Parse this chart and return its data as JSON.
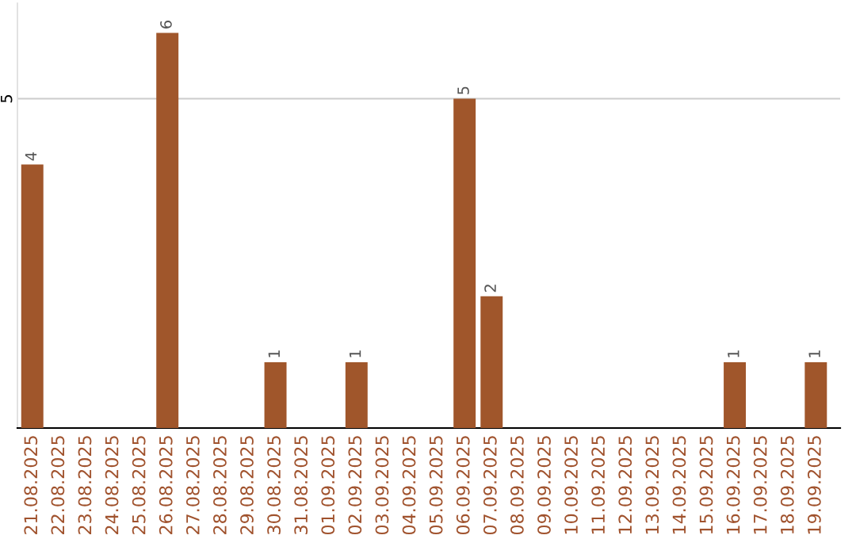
{
  "chart_data": {
    "type": "bar",
    "categories": [
      "21.08.2025",
      "22.08.2025",
      "23.08.2025",
      "24.08.2025",
      "25.08.2025",
      "26.08.2025",
      "27.08.2025",
      "28.08.2025",
      "29.08.2025",
      "30.08.2025",
      "31.08.2025",
      "01.09.2025",
      "02.09.2025",
      "03.09.2025",
      "04.09.2025",
      "05.09.2025",
      "06.09.2025",
      "07.09.2025",
      "08.09.2025",
      "09.09.2025",
      "10.09.2025",
      "11.09.2025",
      "12.09.2025",
      "13.09.2025",
      "14.09.2025",
      "15.09.2025",
      "16.09.2025",
      "17.09.2025",
      "18.09.2025",
      "19.09.2025"
    ],
    "values": [
      4,
      0,
      0,
      0,
      0,
      6,
      0,
      0,
      0,
      1,
      0,
      0,
      1,
      0,
      0,
      0,
      5,
      2,
      0,
      0,
      0,
      0,
      0,
      0,
      0,
      0,
      1,
      0,
      0,
      1
    ],
    "value_labels": [
      "4",
      null,
      null,
      null,
      null,
      "6",
      null,
      null,
      null,
      "1",
      null,
      null,
      "1",
      null,
      null,
      null,
      "5",
      "2",
      null,
      null,
      null,
      null,
      null,
      null,
      null,
      null,
      "1",
      null,
      null,
      "1"
    ],
    "color": "#a0562b",
    "ylim": [
      0,
      6.45
    ],
    "yticks": [
      5
    ],
    "grid": "y",
    "legend": false
  }
}
